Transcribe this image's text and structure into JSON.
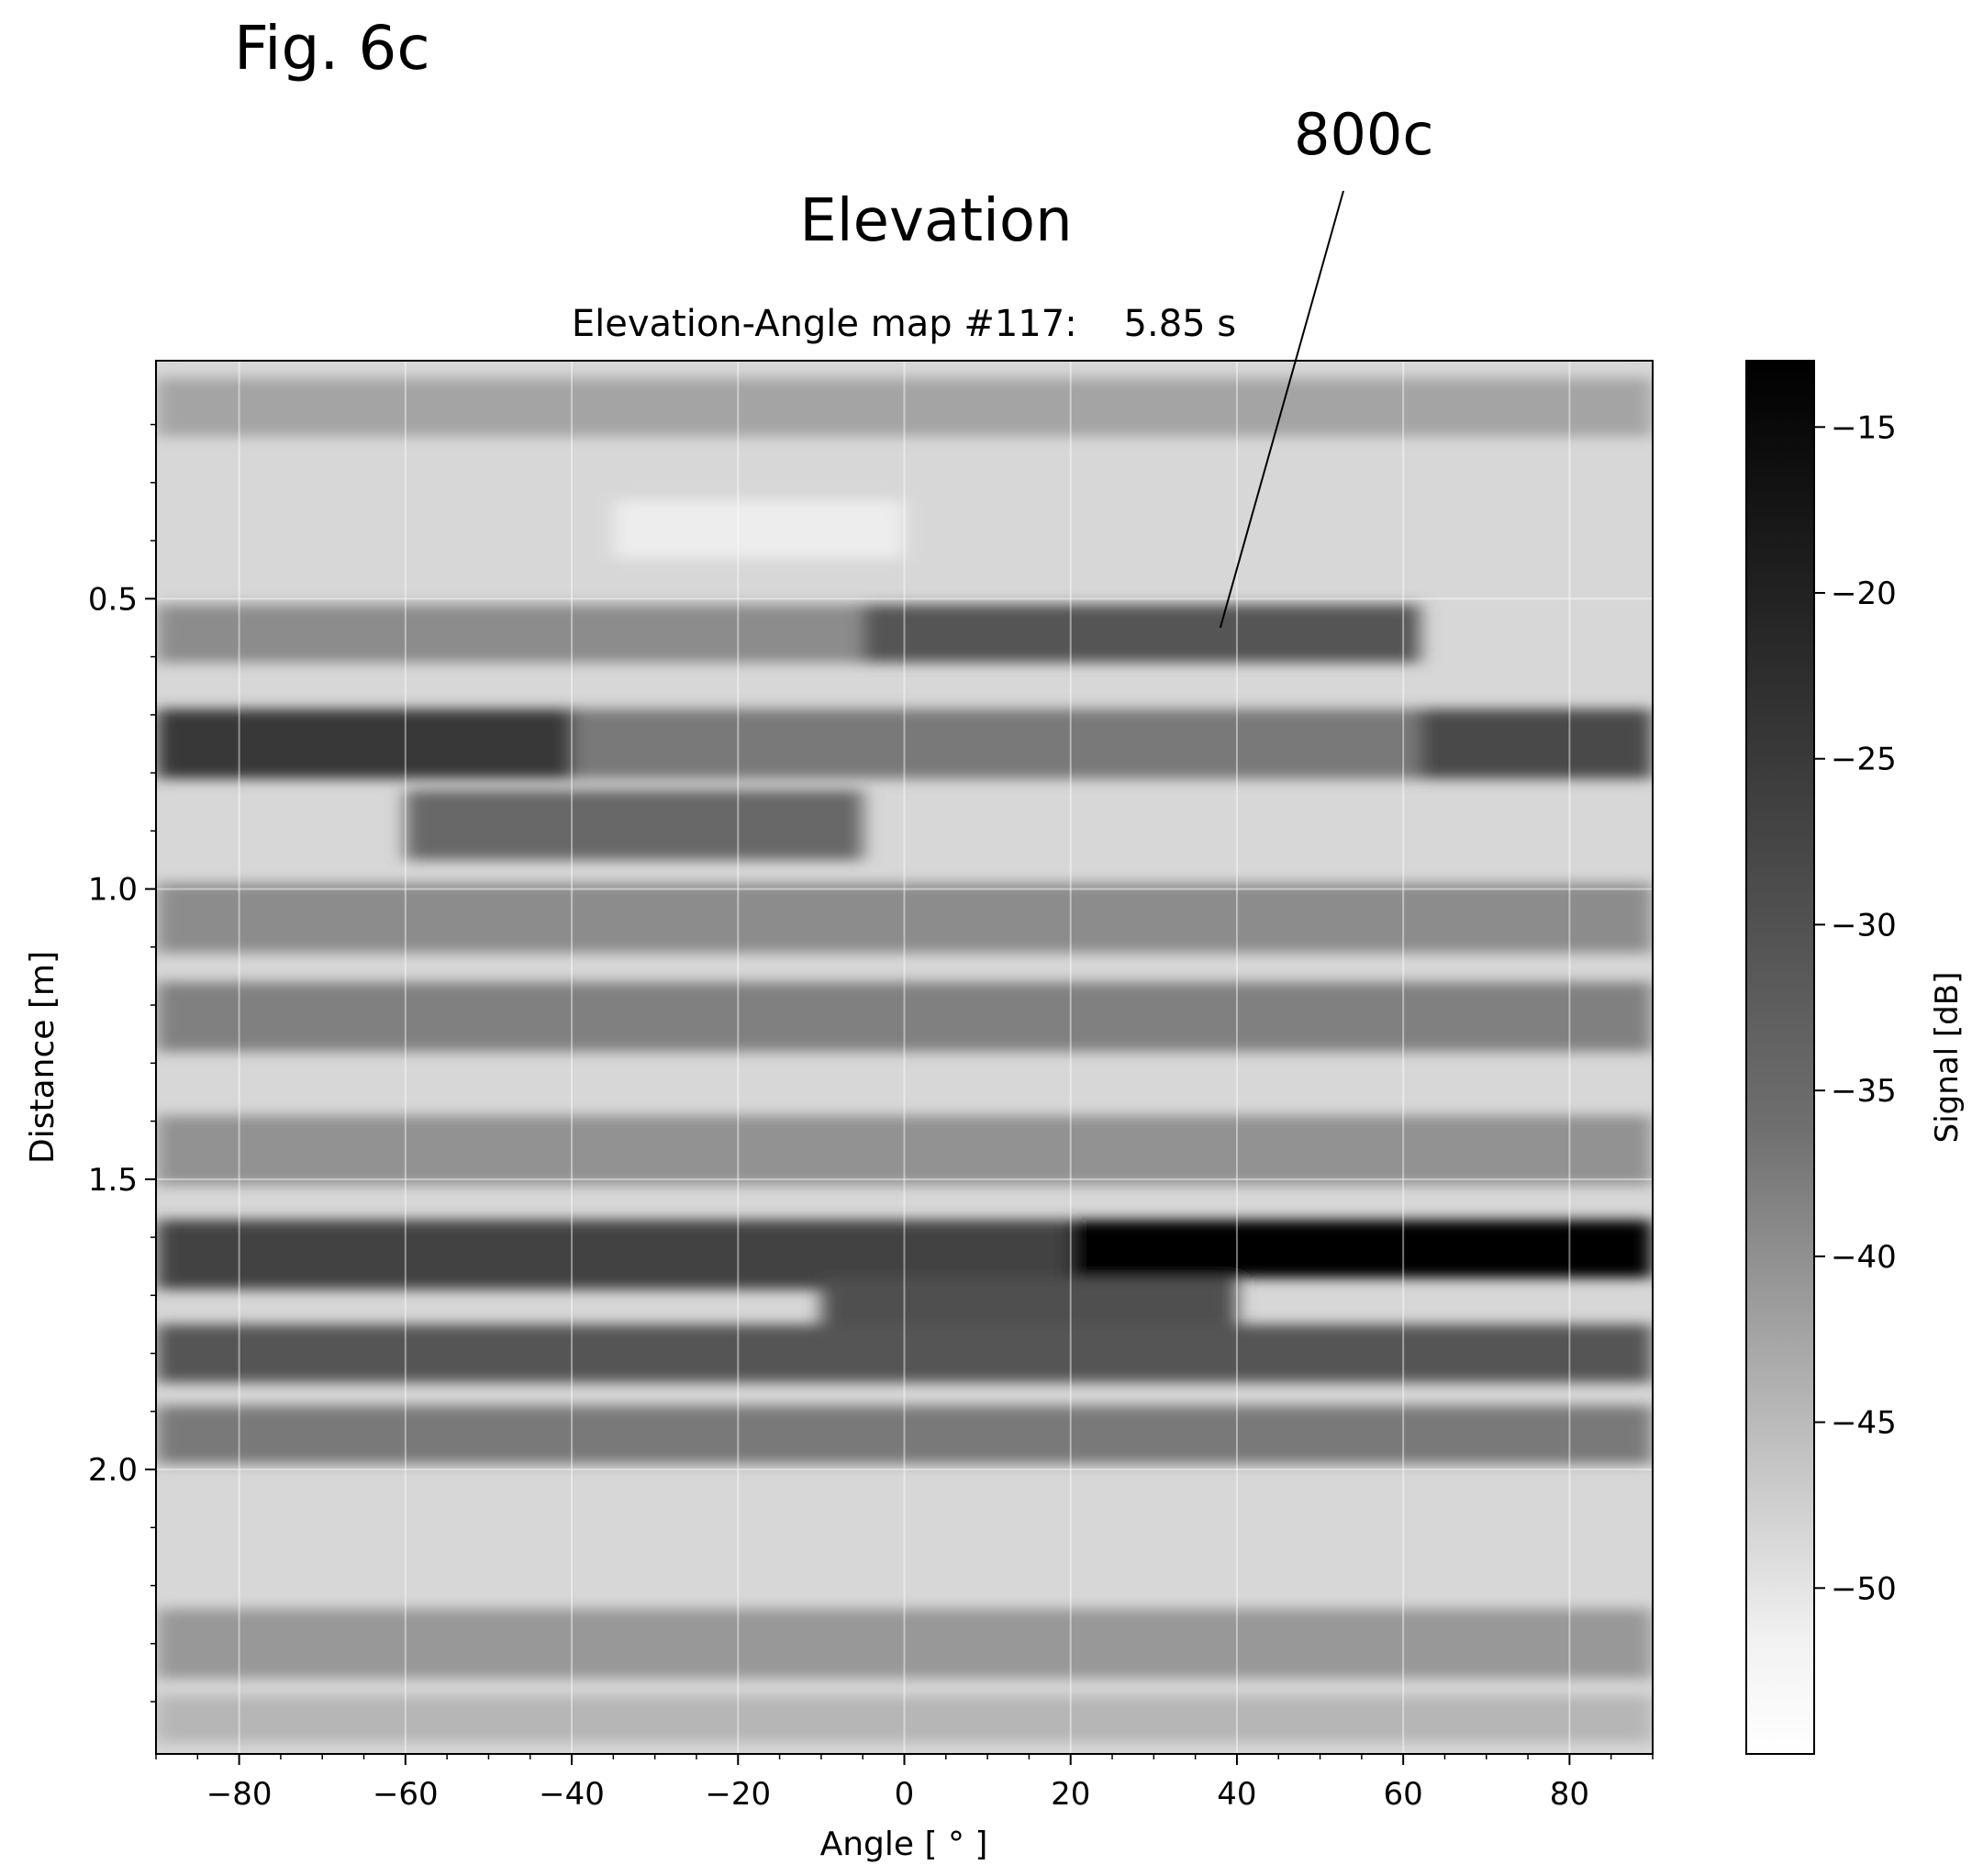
{
  "figure_label": "Fig. 6c",
  "reference_label": "800c",
  "heading": "Elevation",
  "chart_data": {
    "type": "heatmap",
    "title": "Elevation-Angle map #117:    5.85 s",
    "xlabel": "Angle [ ° ]",
    "ylabel": "Distance [m]",
    "xlim": [
      -90,
      90
    ],
    "ylim": [
      2.49,
      0.09
    ],
    "y_inverted": true,
    "grid": true,
    "colormap": "grayscale (white = low, black = high)",
    "x_ticks": [
      -80,
      -60,
      -40,
      -20,
      0,
      20,
      40,
      60,
      80
    ],
    "x_tick_labels": [
      "−80",
      "−60",
      "−40",
      "−20",
      "0",
      "20",
      "40",
      "60",
      "80"
    ],
    "y_ticks": [
      0.5,
      1.0,
      1.5,
      2.0
    ],
    "y_tick_labels": [
      "0.5",
      "1.0",
      "1.5",
      "2.0"
    ],
    "colorbar": {
      "label": "Signal [dB]",
      "range": [
        -55,
        -13
      ],
      "ticks": [
        -15,
        -20,
        -25,
        -30,
        -35,
        -40,
        -45,
        -50
      ],
      "tick_labels": [
        "−15",
        "−20",
        "−25",
        "−30",
        "−35",
        "−40",
        "−45",
        "−50"
      ]
    },
    "annotation": {
      "text": "800c",
      "points_to": {
        "angle": 38,
        "distance": 0.55
      }
    },
    "bands": [
      {
        "distance": 0.17,
        "width": 0.05,
        "level": -40,
        "angle_from": -90,
        "angle_to": 90
      },
      {
        "distance": 0.38,
        "width": 0.05,
        "level": -52,
        "angle_from": -35,
        "angle_to": 0
      },
      {
        "distance": 0.56,
        "width": 0.05,
        "level": -27,
        "angle_from": -5,
        "angle_to": 62
      },
      {
        "distance": 0.56,
        "width": 0.05,
        "level": -36,
        "angle_from": -90,
        "angle_to": -5
      },
      {
        "distance": 0.75,
        "width": 0.06,
        "level": -22,
        "angle_from": -90,
        "angle_to": -40
      },
      {
        "distance": 0.75,
        "width": 0.06,
        "level": -25,
        "angle_from": 62,
        "angle_to": 90
      },
      {
        "distance": 0.75,
        "width": 0.06,
        "level": -33,
        "angle_from": -40,
        "angle_to": 62
      },
      {
        "distance": 0.89,
        "width": 0.06,
        "level": -30,
        "angle_from": -60,
        "angle_to": -5
      },
      {
        "distance": 1.05,
        "width": 0.06,
        "level": -36,
        "angle_from": -90,
        "angle_to": 90
      },
      {
        "distance": 1.22,
        "width": 0.06,
        "level": -34,
        "angle_from": -90,
        "angle_to": 90
      },
      {
        "distance": 1.45,
        "width": 0.06,
        "level": -37,
        "angle_from": -90,
        "angle_to": 90
      },
      {
        "distance": 1.62,
        "width": 0.05,
        "level": -14,
        "angle_from": 20,
        "angle_to": 90
      },
      {
        "distance": 1.63,
        "width": 0.06,
        "level": -24,
        "angle_from": -90,
        "angle_to": 20
      },
      {
        "distance": 1.72,
        "width": 0.05,
        "level": -26,
        "angle_from": -10,
        "angle_to": 40
      },
      {
        "distance": 1.8,
        "width": 0.05,
        "level": -27,
        "angle_from": -90,
        "angle_to": 90
      },
      {
        "distance": 1.94,
        "width": 0.05,
        "level": -33,
        "angle_from": -90,
        "angle_to": 90
      },
      {
        "distance": 2.3,
        "width": 0.06,
        "level": -38,
        "angle_from": -90,
        "angle_to": 90
      },
      {
        "distance": 2.43,
        "width": 0.04,
        "level": -43,
        "angle_from": -90,
        "angle_to": 90
      }
    ]
  }
}
